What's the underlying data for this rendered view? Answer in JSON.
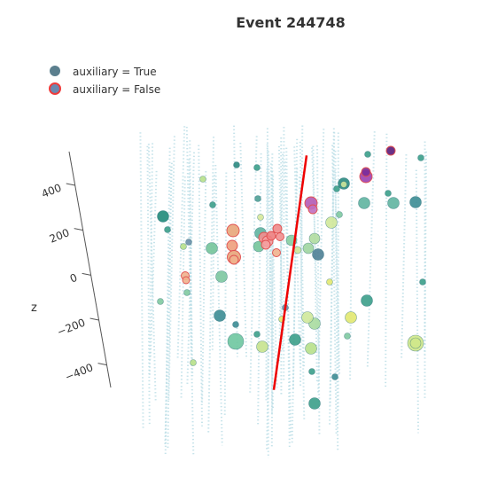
{
  "chart_data": {
    "type": "scatter",
    "subtype": "3d-scatter",
    "title": "Event 244748",
    "legend": {
      "placement": "top-left",
      "entries": [
        {
          "label": "auxiliary = True",
          "color": "#5b7f8e",
          "outline": "#5b7f8e"
        },
        {
          "label": "auxiliary = False",
          "color": "#6b88b0",
          "outline": "#ef3b3b"
        }
      ]
    },
    "z_axis": {
      "title": "z",
      "range": [
        -500,
        550
      ],
      "ticks": [
        -400,
        -200,
        0,
        200,
        400
      ],
      "tick_labels": [
        "−400",
        "−200",
        "0",
        "200",
        "400"
      ]
    },
    "grid": false,
    "colorscale": [
      "#440154",
      "#21908c",
      "#5ec962",
      "#b5de2b",
      "#e5e08a",
      "#f4a582"
    ],
    "track_line": {
      "color": "#ee0000",
      "from_z": -470,
      "to_z": 520
    },
    "detector_strings": 62,
    "hits_auxiliary_true": [
      {
        "sx": 267,
        "sy": 186,
        "size": 3.5,
        "color": "#2a8a7f"
      },
      {
        "sx": 290,
        "sy": 189,
        "size": 3.5,
        "color": "#3b9f8a"
      },
      {
        "sx": 229,
        "sy": 202,
        "size": 3.5,
        "color": "#b7e08a"
      },
      {
        "sx": 240,
        "sy": 231,
        "size": 3.5,
        "color": "#3b9f8a"
      },
      {
        "sx": 291,
        "sy": 224,
        "size": 3.5,
        "color": "#4fa095"
      },
      {
        "sx": 184,
        "sy": 244,
        "size": 6.5,
        "color": "#1f8a7a"
      },
      {
        "sx": 189,
        "sy": 259,
        "size": 3.5,
        "color": "#3b9f8a"
      },
      {
        "sx": 213,
        "sy": 273,
        "size": 3.5,
        "color": "#6b8fa8"
      },
      {
        "sx": 207,
        "sy": 278,
        "size": 3.5,
        "color": "#b7e08a"
      },
      {
        "sx": 239,
        "sy": 280,
        "size": 6.5,
        "color": "#74c49a"
      },
      {
        "sx": 294,
        "sy": 245,
        "size": 3.5,
        "color": "#d7e89a"
      },
      {
        "sx": 294,
        "sy": 263,
        "size": 6.5,
        "color": "#5fb4a0"
      },
      {
        "sx": 292,
        "sy": 278,
        "size": 6,
        "color": "#74c49a"
      },
      {
        "sx": 329,
        "sy": 271,
        "size": 6,
        "color": "#86cda0"
      },
      {
        "sx": 336,
        "sy": 282,
        "size": 4,
        "color": "#cde59a"
      },
      {
        "sx": 348,
        "sy": 280,
        "size": 6,
        "color": "#9fd5a0"
      },
      {
        "sx": 355,
        "sy": 269,
        "size": 6,
        "color": "#b0dca0"
      },
      {
        "sx": 359,
        "sy": 287,
        "size": 6.5,
        "color": "#4e7f95"
      },
      {
        "sx": 250,
        "sy": 312,
        "size": 6.5,
        "color": "#7cc7a0"
      },
      {
        "sx": 211,
        "sy": 330,
        "size": 3.5,
        "color": "#7fc9a0"
      },
      {
        "sx": 181,
        "sy": 340,
        "size": 3.5,
        "color": "#7fc9a0"
      },
      {
        "sx": 248,
        "sy": 356,
        "size": 6.5,
        "color": "#3b8c93"
      },
      {
        "sx": 266,
        "sy": 366,
        "size": 3.5,
        "color": "#3b8c93"
      },
      {
        "sx": 290,
        "sy": 377,
        "size": 3.5,
        "color": "#3b9f8a"
      },
      {
        "sx": 266,
        "sy": 385,
        "size": 9,
        "color": "#6ec7a0"
      },
      {
        "sx": 296,
        "sy": 391,
        "size": 6.5,
        "color": "#c7e38e"
      },
      {
        "sx": 218,
        "sy": 409,
        "size": 3.5,
        "color": "#b7e08a"
      },
      {
        "sx": 333,
        "sy": 383,
        "size": 6.5,
        "color": "#3b9f8a"
      },
      {
        "sx": 351,
        "sy": 393,
        "size": 6.5,
        "color": "#b7e08a"
      },
      {
        "sx": 355,
        "sy": 365,
        "size": 6.5,
        "color": "#a8dca0"
      },
      {
        "sx": 347,
        "sy": 358,
        "size": 6.5,
        "color": "#cfe89a"
      },
      {
        "sx": 318,
        "sy": 360,
        "size": 3.5,
        "color": "#e2e870"
      },
      {
        "sx": 322,
        "sy": 347,
        "size": 3.5,
        "color": "#6b8fa8"
      },
      {
        "sx": 372,
        "sy": 318,
        "size": 3.5,
        "color": "#e2e870"
      },
      {
        "sx": 352,
        "sy": 419,
        "size": 3.5,
        "color": "#3b9f8a"
      },
      {
        "sx": 378,
        "sy": 425,
        "size": 3.5,
        "color": "#3b8c93"
      },
      {
        "sx": 355,
        "sy": 455,
        "size": 6.5,
        "color": "#3b9f8a"
      },
      {
        "sx": 374,
        "sy": 251,
        "size": 6.5,
        "color": "#d0e89a"
      },
      {
        "sx": 383,
        "sy": 242,
        "size": 3.5,
        "color": "#7fc9a0"
      },
      {
        "sx": 380,
        "sy": 213,
        "size": 3.5,
        "color": "#3b9f8a"
      },
      {
        "sx": 388,
        "sy": 207,
        "size": 6.5,
        "color": "#2a8a7f"
      },
      {
        "sx": 388,
        "sy": 208,
        "size": 3.5,
        "color": "#cde59a"
      },
      {
        "sx": 411,
        "sy": 229,
        "size": 6.5,
        "color": "#5fb4a0"
      },
      {
        "sx": 415,
        "sy": 174,
        "size": 3.5,
        "color": "#3b9f8a"
      },
      {
        "sx": 438,
        "sy": 218,
        "size": 3.5,
        "color": "#3b9f8a"
      },
      {
        "sx": 444,
        "sy": 229,
        "size": 6.5,
        "color": "#5fb4a0"
      },
      {
        "sx": 469,
        "sy": 228,
        "size": 6.5,
        "color": "#3b8c93"
      },
      {
        "sx": 475,
        "sy": 178,
        "size": 3.5,
        "color": "#3b9f8a"
      },
      {
        "sx": 477,
        "sy": 318,
        "size": 3.5,
        "color": "#3b9f8a"
      },
      {
        "sx": 414,
        "sy": 339,
        "size": 6.5,
        "color": "#3b9f8a"
      },
      {
        "sx": 396,
        "sy": 358,
        "size": 6.5,
        "color": "#e2e870"
      },
      {
        "sx": 392,
        "sy": 379,
        "size": 3.5,
        "color": "#7fc9a0"
      },
      {
        "sx": 469,
        "sy": 387,
        "size": 9,
        "color": "#cfe88a"
      },
      {
        "sx": 469,
        "sy": 387,
        "size": 6,
        "color": "#cfe88a"
      }
    ],
    "hits_auxiliary_false": [
      {
        "sx": 263,
        "sy": 260,
        "size": 7,
        "color": "#e8a57a"
      },
      {
        "sx": 262,
        "sy": 277,
        "size": 6,
        "color": "#ee9e7c"
      },
      {
        "sx": 264,
        "sy": 290,
        "size": 7.5,
        "color": "#e8a57a"
      },
      {
        "sx": 264,
        "sy": 293,
        "size": 5,
        "color": "#f0b38e"
      },
      {
        "sx": 209,
        "sy": 311,
        "size": 4.5,
        "color": "#f0b38e"
      },
      {
        "sx": 210,
        "sy": 316,
        "size": 4,
        "color": "#f0b38e"
      },
      {
        "sx": 298,
        "sy": 268,
        "size": 6,
        "color": "#f28f8f"
      },
      {
        "sx": 302,
        "sy": 272,
        "size": 6,
        "color": "#f4a0a0"
      },
      {
        "sx": 306,
        "sy": 266,
        "size": 5,
        "color": "#f08080"
      },
      {
        "sx": 300,
        "sy": 276,
        "size": 5,
        "color": "#f4a0a0"
      },
      {
        "sx": 313,
        "sy": 258,
        "size": 5,
        "color": "#ee8a8a"
      },
      {
        "sx": 316,
        "sy": 267,
        "size": 4.5,
        "color": "#f28f8f"
      },
      {
        "sx": 312,
        "sy": 285,
        "size": 4.5,
        "color": "#f0b38e"
      },
      {
        "sx": 351,
        "sy": 229,
        "size": 7,
        "color": "#b45ab5"
      },
      {
        "sx": 353,
        "sy": 236,
        "size": 5,
        "color": "#c070c0"
      },
      {
        "sx": 413,
        "sy": 199,
        "size": 7,
        "color": "#9b3fb0"
      },
      {
        "sx": 413,
        "sy": 194,
        "size": 5,
        "color": "#7a2b9a"
      },
      {
        "sx": 441,
        "sy": 170,
        "size": 5,
        "color": "#5a1b7a"
      }
    ]
  }
}
